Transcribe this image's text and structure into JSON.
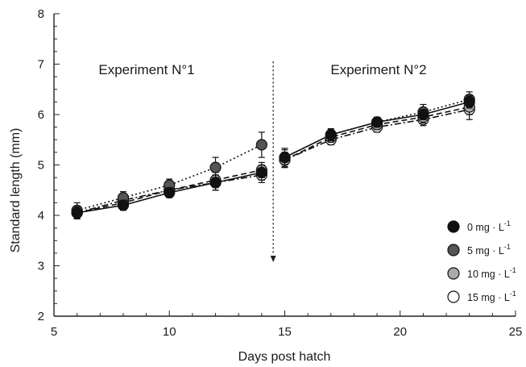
{
  "chart_data": {
    "type": "line",
    "xlabel": "Days post hatch",
    "ylabel": "Standard length (mm)",
    "xlim": [
      5,
      25
    ],
    "ylim": [
      2,
      8
    ],
    "x_ticks": [
      5,
      10,
      15,
      20,
      25
    ],
    "y_ticks": [
      2,
      3,
      4,
      5,
      6,
      7,
      8
    ],
    "grid": false,
    "legend_position": "bottom-right",
    "annotations": [
      {
        "text": "Experiment N°1",
        "region": "left"
      },
      {
        "text": "Experiment N°2",
        "region": "right"
      }
    ],
    "divider_day": 14.5,
    "series": [
      {
        "name": "0 mg · L",
        "name_superscript": "-1",
        "marker_fill": "#111111",
        "line_style": "solid",
        "segments": [
          {
            "x": [
              6,
              8,
              10,
              12,
              14
            ],
            "y": [
              4.05,
              4.2,
              4.45,
              4.65,
              4.85
            ],
            "err": [
              0.12,
              0.1,
              0.1,
              0.15,
              0.15
            ]
          },
          {
            "x": [
              15,
              17,
              19,
              21,
              23
            ],
            "y": [
              5.15,
              5.6,
              5.85,
              6.0,
              6.25
            ],
            "err": [
              0.15,
              0.1,
              0.08,
              0.1,
              0.12
            ]
          }
        ]
      },
      {
        "name": "5 mg · L",
        "name_superscript": "-1",
        "marker_fill": "#555555",
        "line_style": "dotted",
        "segments": [
          {
            "x": [
              6,
              8,
              10,
              12,
              14
            ],
            "y": [
              4.1,
              4.35,
              4.6,
              4.95,
              5.4
            ],
            "err": [
              0.15,
              0.12,
              0.12,
              0.2,
              0.25
            ]
          },
          {
            "x": [
              15,
              17,
              19,
              21,
              23
            ],
            "y": [
              5.15,
              5.6,
              5.85,
              6.05,
              6.3
            ],
            "err": [
              0.18,
              0.12,
              0.1,
              0.15,
              0.15
            ]
          }
        ]
      },
      {
        "name": "10 mg · L",
        "name_superscript": "-1",
        "marker_fill": "#aaaaaa",
        "line_style": "dashed",
        "segments": [
          {
            "x": [
              6,
              8,
              10,
              12,
              14
            ],
            "y": [
              4.05,
              4.25,
              4.5,
              4.7,
              4.9
            ],
            "err": [
              0.12,
              0.1,
              0.1,
              0.15,
              0.15
            ]
          },
          {
            "x": [
              15,
              17,
              19,
              21,
              23
            ],
            "y": [
              5.1,
              5.55,
              5.8,
              5.95,
              6.15
            ],
            "err": [
              0.15,
              0.1,
              0.1,
              0.12,
              0.15
            ]
          }
        ]
      },
      {
        "name": "15 mg · L",
        "name_superscript": "-1",
        "marker_fill": "#ffffff",
        "line_style": "dash-dot",
        "segments": [
          {
            "x": [
              6,
              8,
              10,
              12,
              14
            ],
            "y": [
              4.05,
              4.3,
              4.5,
              4.65,
              4.8
            ],
            "err": [
              0.12,
              0.1,
              0.1,
              0.15,
              0.15
            ]
          },
          {
            "x": [
              15,
              17,
              19,
              21,
              23
            ],
            "y": [
              5.1,
              5.5,
              5.75,
              5.9,
              6.1
            ],
            "err": [
              0.15,
              0.1,
              0.1,
              0.12,
              0.2
            ]
          }
        ]
      }
    ]
  }
}
